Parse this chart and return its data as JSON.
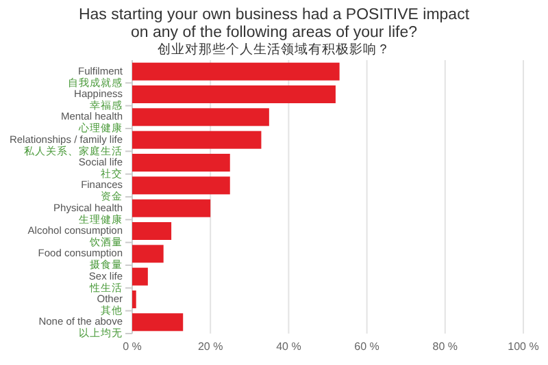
{
  "chart_data": {
    "type": "bar",
    "orientation": "horizontal",
    "title": "Has starting your own business had a POSITIVE impact on any of the following areas of your life?",
    "subtitle": "创业对那些个人生活领域有积极影响？",
    "categories": [
      "Fulfilment\n自我成就感",
      "Happiness\n幸福感",
      "Mental health\n心理健康",
      "Relationships / family life\n私人关系、家庭生活",
      "Social life\n社交",
      "Finances\n资金",
      "Physical health\n生理健康",
      "Alcohol consumption\n饮酒量",
      "Food consumption\n摄食量",
      "Sex life\n性生活",
      "Other\n其他",
      "None of the above\n以上均无"
    ],
    "values": [
      53,
      52,
      35,
      33,
      25,
      25,
      20,
      10,
      8,
      4,
      1,
      13
    ],
    "color": "#e51f27",
    "xlim": [
      0,
      100
    ],
    "xticks": [
      {
        "value": 0,
        "label": "0 %"
      },
      {
        "value": 20,
        "label": "20 %"
      },
      {
        "value": 40,
        "label": "40 %"
      },
      {
        "value": 60,
        "label": "60 %"
      },
      {
        "value": 80,
        "label": "80 %"
      },
      {
        "value": 100,
        "label": "100 %"
      }
    ],
    "grid": "x"
  }
}
